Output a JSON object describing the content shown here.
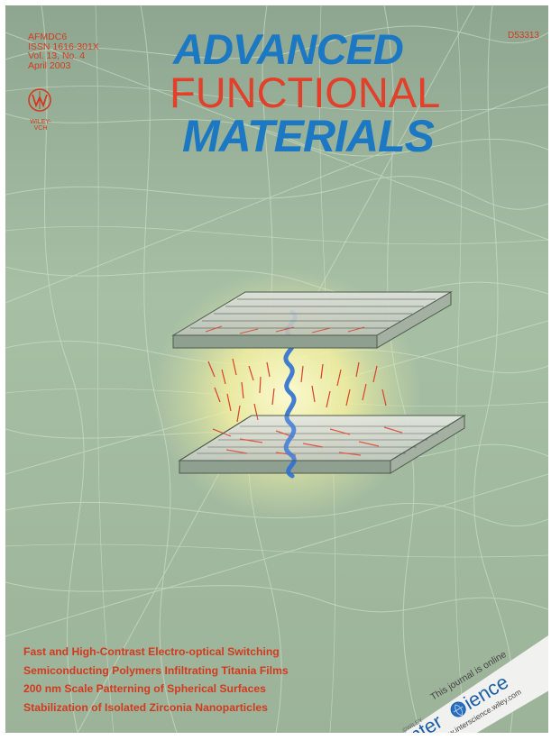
{
  "cover": {
    "journal_code": "AFMDC6",
    "issn": "ISSN 1616-301X",
    "volume": "Vol. 13, No. 4",
    "date": "April 2003",
    "item_code": "D53313",
    "publisher_line1": "WILEY-",
    "publisher_line2": "VCH",
    "title_line1": "ADVANCED",
    "title_line2": "FUNCTIONAL",
    "title_line3": "MATERIALS",
    "headlines": [
      "Fast and High-Contrast Electro-optical Switching",
      "Semiconducting Polymers Infiltrating Titania Films",
      "200 nm Scale Patterning of Spherical Surfaces",
      "Stabilization of Isolated Zirconia Nanoparticles"
    ],
    "banner": {
      "tagline": "This journal is online",
      "wiley": "©WILEY",
      "brand_prefix": "Inter",
      "brand_suffix": "ience",
      "url": "www.interscience.wiley.com"
    }
  }
}
